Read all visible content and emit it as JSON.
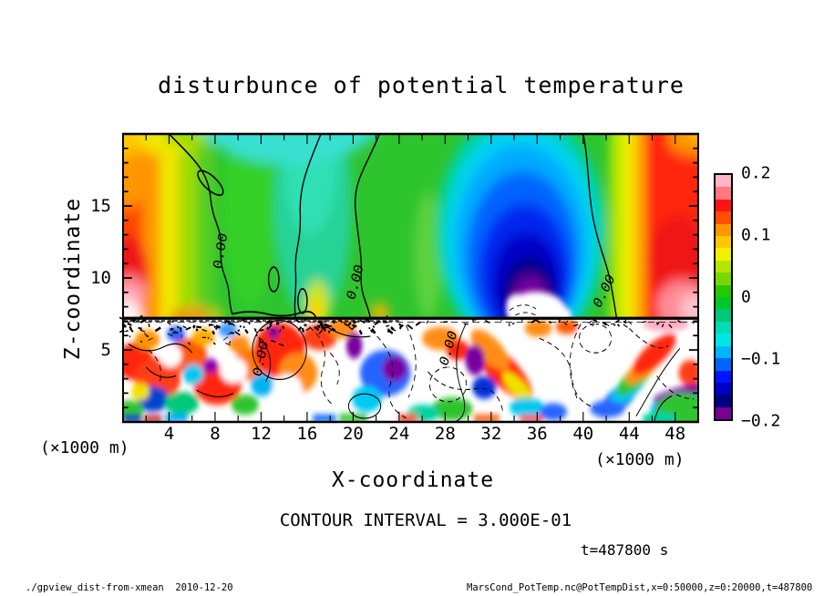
{
  "title": "disturbunce of potential temperature",
  "axes": {
    "x": {
      "label": "X-coordinate",
      "unit_label": "(×1000 m)",
      "ticks": [
        4,
        8,
        12,
        16,
        20,
        24,
        28,
        32,
        36,
        40,
        44,
        48
      ],
      "range": [
        0,
        50
      ]
    },
    "z": {
      "label": "Z-coordinate",
      "unit_label": "(×1000 m)",
      "ticks": [
        15,
        10,
        5
      ],
      "range": [
        0,
        20
      ]
    }
  },
  "colorbar": {
    "min": -0.2,
    "max": 0.2,
    "band_step": 0.02,
    "tick_labels": [
      "0.2",
      "0.1",
      "0",
      "−0.1",
      "−0.2"
    ],
    "colors_top_to_bottom": [
      "#ffb4c8",
      "#ff7882",
      "#ff1414",
      "#ff5000",
      "#ff9600",
      "#ffc800",
      "#f0f000",
      "#b4e600",
      "#78d800",
      "#28c800",
      "#00c828",
      "#00c878",
      "#00dcb4",
      "#00e6e6",
      "#00b4ff",
      "#0064ff",
      "#0014ff",
      "#0000c8",
      "#000082",
      "#780096"
    ]
  },
  "annotations": {
    "contour_interval": "CONTOUR INTERVAL = 3.000E-01",
    "time": "t=487800 s"
  },
  "footer": {
    "left": "./gpview_dist-from-xmean  2010-12-20",
    "right": "MarsCond_PotTemp.nc@PotTempDist,x=0:50000,z=0:20000,t=487800"
  },
  "plot": {
    "contour_labels": [
      {
        "text": "0.00"
      },
      {
        "text": "0.00"
      },
      {
        "text": "0.00"
      },
      {
        "text": "0.00"
      },
      {
        "text": "0.00"
      }
    ]
  },
  "chart_data": {
    "type": "filled_contour",
    "title": "disturbunce of potential temperature",
    "xlabel": "X-coordinate (×1000 m)",
    "ylabel": "Z-coordinate (×1000 m)",
    "xlim": [
      0,
      50
    ],
    "ylim": [
      0,
      20
    ],
    "x_ticks": [
      4,
      8,
      12,
      16,
      20,
      24,
      28,
      32,
      36,
      40,
      44,
      48
    ],
    "z_ticks": [
      5,
      10,
      15
    ],
    "colorbar": {
      "min": -0.2,
      "max": 0.2,
      "step": 0.02,
      "ticks": [
        -0.2,
        -0.1,
        0,
        0.1,
        0.2
      ]
    },
    "contour_interval": 0.3,
    "contour_line_value_label": "0.00",
    "time_seconds": 487800,
    "grid_on": false,
    "legend_position": "colorbar-right",
    "field_estimate": {
      "comment": "approximate disturbance values read from fill colors, upper (smooth) region",
      "x": [
        0,
        4,
        8,
        12,
        16,
        20,
        24,
        28,
        32,
        36,
        40,
        44,
        48
      ],
      "z_rows": [
        18,
        14,
        10,
        8
      ],
      "values": [
        [
          0.09,
          0.05,
          -0.02,
          -0.04,
          -0.05,
          -0.03,
          0.01,
          -0.04,
          -0.08,
          -0.09,
          -0.01,
          0.07,
          0.12
        ],
        [
          0.12,
          0.08,
          0.03,
          0.02,
          -0.03,
          0.01,
          0.02,
          -0.05,
          -0.13,
          -0.16,
          -0.04,
          0.06,
          0.13
        ],
        [
          0.15,
          0.09,
          0.05,
          0.03,
          -0.02,
          0.01,
          0.02,
          -0.06,
          -0.17,
          -0.19,
          -0.05,
          0.06,
          0.14
        ],
        [
          0.18,
          0.1,
          0.05,
          0.04,
          0.03,
          0.02,
          0.02,
          -0.07,
          -0.21,
          -0.22,
          -0.06,
          0.07,
          0.17
        ]
      ]
    },
    "features": [
      "smooth large-scale anomaly field above z≈7200 m, sharp black interface line at z≈7200 m",
      "warm (positive, red/pink ~+0.15..+0.2) anomalies at left edge x≈0 and right edge x≈45-50",
      "cold (negative) anomaly centered near x≈35, core < −0.2 (purple, white where out of colour range)",
      "zero contours (labeled 0.00) descend from top near x≈4-9, x≈17, x≈22 and x≈40-43",
      "turbulent small-scale anomalies below z≈7200 m with amplitudes exceeding ±0.2 (white = out of range), dashed contours = negative"
    ]
  }
}
